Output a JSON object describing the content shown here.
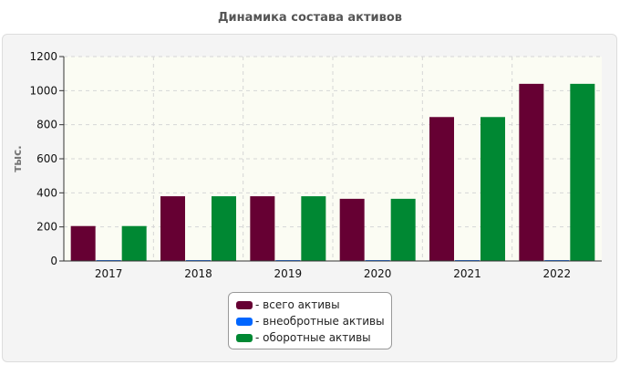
{
  "chart_data": {
    "type": "bar",
    "title": "Динамика состава активов",
    "xlabel": "",
    "ylabel": "тыс.",
    "ylim": [
      0,
      1200
    ],
    "yticks": [
      0,
      200,
      400,
      600,
      800,
      1000,
      1200
    ],
    "grid": true,
    "legend_position": "bottom-center",
    "categories": [
      "2017",
      "2018",
      "2019",
      "2020",
      "2021",
      "2022"
    ],
    "series": [
      {
        "name": "- всего активы",
        "color": "#660033",
        "values": [
          205,
          380,
          380,
          365,
          845,
          1040
        ]
      },
      {
        "name": "- внеобротные активы",
        "color": "#0066ff",
        "values": [
          5,
          5,
          5,
          5,
          5,
          5
        ]
      },
      {
        "name": "- оборотные активы",
        "color": "#008833",
        "values": [
          205,
          380,
          380,
          365,
          845,
          1040
        ]
      }
    ]
  }
}
